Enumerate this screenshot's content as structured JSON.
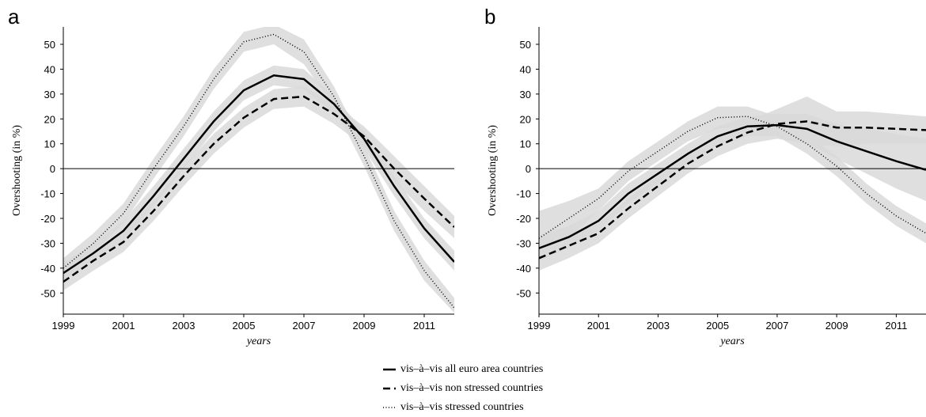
{
  "chart_data": [
    {
      "type": "line",
      "panel": "a",
      "ylabel": "Overshooting (in %)",
      "xlabel": "years",
      "x": [
        1999,
        2000,
        2001,
        2002,
        2003,
        2004,
        2005,
        2006,
        2007,
        2008,
        2009,
        2010,
        2011,
        2012
      ],
      "xlim": [
        1999,
        2012
      ],
      "xticks": [
        1999,
        2001,
        2003,
        2005,
        2007,
        2009,
        2011
      ],
      "ylim": [
        -58.5,
        57
      ],
      "yticks": [
        -50,
        -40,
        -30,
        -20,
        -10,
        0,
        10,
        20,
        30,
        40,
        50
      ],
      "band_color": "#d9d9d9",
      "series": [
        {
          "name": "vis–à–vis all euro area countries",
          "color": "#000000",
          "style": "solid",
          "values": [
            -42,
            -34,
            -25,
            -11,
            4,
            19,
            31.5,
            37.5,
            36,
            26,
            12,
            -7,
            -24,
            -37.5
          ],
          "upper": [
            -38,
            -30,
            -21,
            -7,
            8,
            23,
            35.5,
            41.5,
            40,
            29,
            15,
            -3,
            -20,
            -33
          ],
          "lower": [
            -45,
            -37,
            -29,
            -15,
            0,
            15,
            27.5,
            33.5,
            32,
            22,
            8,
            -11,
            -28,
            -41
          ]
        },
        {
          "name": "vis–à–vis non stressed countries",
          "color": "#000000",
          "style": "dashed",
          "values": [
            -45.5,
            -37,
            -29.5,
            -17,
            -3,
            10,
            20.5,
            28,
            29,
            22,
            13,
            0,
            -12,
            -23.5
          ],
          "upper": [
            -42,
            -33,
            -25.5,
            -13,
            1,
            14,
            24.5,
            32,
            33,
            26,
            17,
            5,
            -7,
            -19
          ],
          "lower": [
            -49,
            -41,
            -33.5,
            -21,
            -7,
            6,
            16.5,
            24,
            25,
            18,
            9,
            -5,
            -17,
            -28
          ]
        },
        {
          "name": "vis–à–vis stressed countries",
          "color": "#000000",
          "style": "dotted",
          "values": [
            -40,
            -30,
            -18,
            0,
            17,
            36,
            51,
            54,
            47,
            29,
            5,
            -21,
            -41,
            -56
          ],
          "upper": [
            -36,
            -26,
            -14,
            4,
            21,
            40,
            55,
            58,
            52,
            33,
            9,
            -17,
            -37,
            -52
          ],
          "lower": [
            -44,
            -34,
            -22,
            -4,
            13,
            32,
            47,
            50,
            42,
            25,
            1,
            -25,
            -45,
            -58
          ]
        }
      ]
    },
    {
      "type": "line",
      "panel": "b",
      "ylabel": "Overshooting (in %)",
      "xlabel": "years",
      "x": [
        1999,
        2000,
        2001,
        2002,
        2003,
        2004,
        2005,
        2006,
        2007,
        2008,
        2009,
        2010,
        2011,
        2012
      ],
      "xlim": [
        1999,
        2012
      ],
      "xticks": [
        1999,
        2001,
        2003,
        2005,
        2007,
        2009,
        2011
      ],
      "ylim": [
        -58.5,
        57
      ],
      "yticks": [
        -50,
        -40,
        -30,
        -20,
        -10,
        0,
        10,
        20,
        30,
        40,
        50
      ],
      "band_color": "#d9d9d9",
      "series": [
        {
          "color": "#000000",
          "style": "solid",
          "values": [
            -32,
            -27.5,
            -21,
            -10,
            -2,
            6,
            13,
            17,
            17.5,
            16,
            11,
            7,
            3,
            -0.5
          ],
          "upper": [
            -27,
            -23,
            -17,
            -6,
            2,
            10,
            17,
            21,
            22,
            22,
            18,
            16,
            14,
            12
          ],
          "lower": [
            -37,
            -32,
            -25,
            -14,
            -6,
            2,
            9,
            13,
            13,
            10,
            4,
            -2,
            -8,
            -13
          ]
        },
        {
          "color": "#000000",
          "style": "dashed",
          "values": [
            -36,
            -31,
            -26,
            -16,
            -7,
            2,
            9,
            14.5,
            18,
            19,
            16.5,
            16.5,
            16,
            15.5
          ],
          "upper": [
            -31,
            -27,
            -22,
            -12,
            -3,
            6,
            13,
            19,
            24,
            29,
            23,
            23,
            22,
            21
          ],
          "lower": [
            -41,
            -36,
            -30,
            -20,
            -11,
            -2,
            5,
            10,
            12,
            10,
            9,
            10,
            10,
            10
          ]
        },
        {
          "color": "#000000",
          "style": "dotted",
          "values": [
            -28,
            -20,
            -12,
            -1,
            7,
            15,
            20.5,
            21,
            17,
            10,
            1,
            -10,
            -19,
            -26
          ],
          "upper": [
            -17,
            -13,
            -8,
            3,
            11,
            19,
            25,
            25,
            21,
            14,
            5,
            -6,
            -15,
            -22
          ],
          "lower": [
            -37,
            -28,
            -17,
            -5,
            3,
            11,
            16,
            17,
            13,
            6,
            -3,
            -14,
            -23,
            -30
          ]
        }
      ]
    }
  ]
}
